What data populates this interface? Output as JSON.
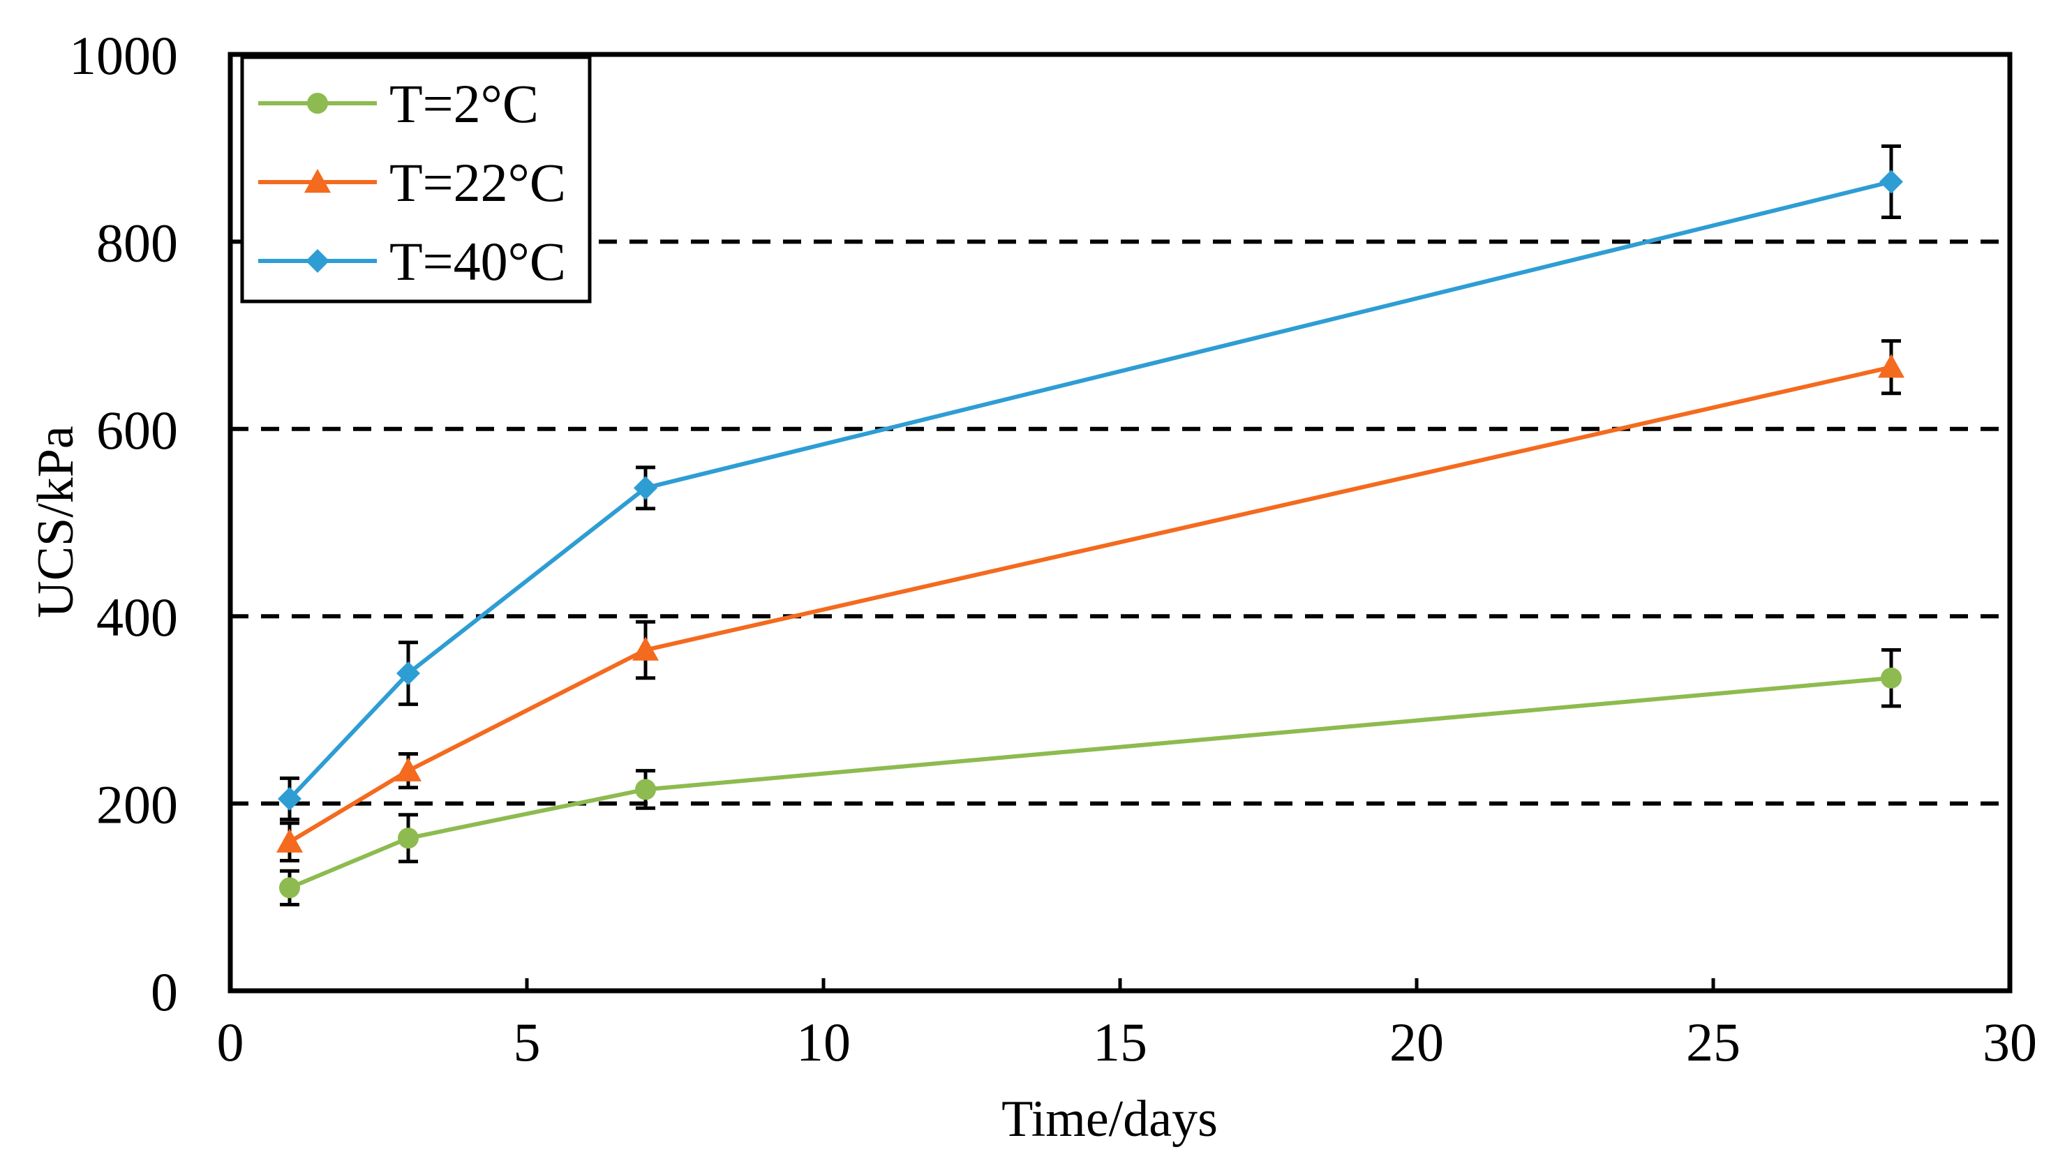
{
  "chart_data": {
    "type": "line",
    "title": "",
    "xlabel": "Time/days",
    "ylabel": "UCS/kPa",
    "xlim": [
      0,
      30
    ],
    "ylim": [
      0,
      1000
    ],
    "xticks": [
      0,
      5,
      10,
      15,
      20,
      25,
      30
    ],
    "yticks": [
      0,
      200,
      400,
      600,
      800,
      1000
    ],
    "xtick_labels": [
      "0",
      "5",
      "10",
      "15",
      "20",
      "25",
      "30"
    ],
    "ytick_labels": [
      "0",
      "200",
      "400",
      "600",
      "800",
      "1000"
    ],
    "gridlines": {
      "axis": "y",
      "style": "dashed",
      "values": [
        200,
        400,
        600,
        800
      ]
    },
    "legend_position": "top-left",
    "series": [
      {
        "name": "T=2°C",
        "color": "#8DBB4F",
        "marker": "circle",
        "x": [
          1,
          3,
          7,
          28
        ],
        "values": [
          110,
          163,
          215,
          334
        ],
        "errors": [
          18,
          25,
          20,
          30
        ]
      },
      {
        "name": "T=22°C",
        "color": "#F46A1E",
        "marker": "triangle",
        "x": [
          1,
          3,
          7,
          28
        ],
        "values": [
          159,
          235,
          364,
          666
        ],
        "errors": [
          20,
          18,
          30,
          28
        ]
      },
      {
        "name": "T=40°C",
        "color": "#2E9DD4",
        "marker": "diamond",
        "x": [
          1,
          3,
          7,
          28
        ],
        "values": [
          205,
          339,
          537,
          864
        ],
        "errors": [
          22,
          33,
          22,
          38
        ]
      }
    ]
  }
}
